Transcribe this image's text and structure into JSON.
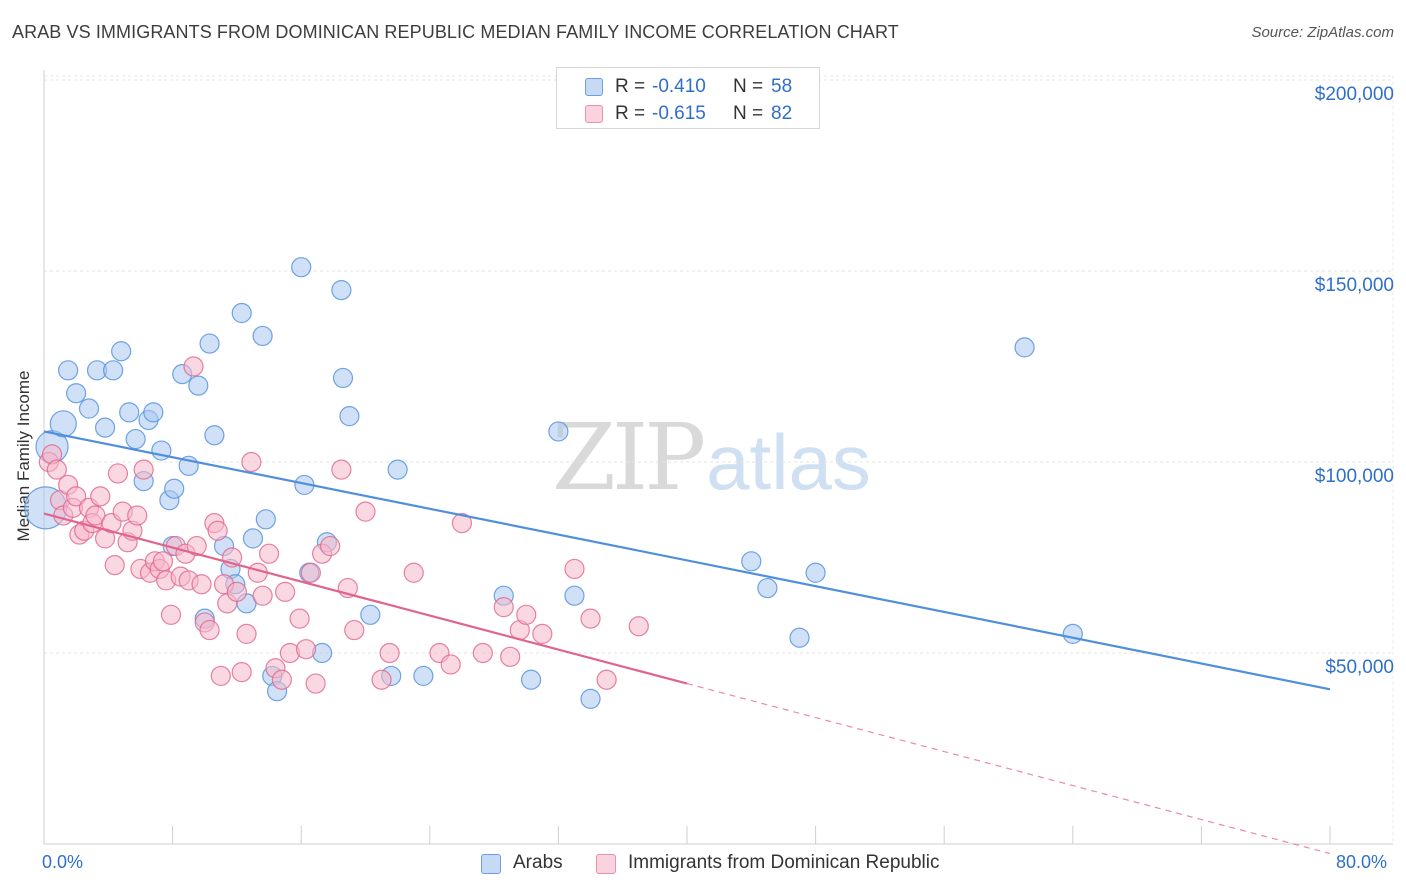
{
  "title": "ARAB VS IMMIGRANTS FROM DOMINICAN REPUBLIC MEDIAN FAMILY INCOME CORRELATION CHART",
  "source": "Source: ZipAtlas.com",
  "watermark": {
    "zip": "ZIP",
    "atlas": "atlas"
  },
  "stat_legend": {
    "rows": [
      {
        "r_label": "R = ",
        "r_value": "-0.410",
        "n_label": "N = ",
        "n_value": "58",
        "color": "#a9c8f0"
      },
      {
        "r_label": "R = ",
        "r_value": "-0.615",
        "n_label": "N = ",
        "n_value": "82",
        "color": "#f6b8cb"
      }
    ]
  },
  "legend": {
    "items": [
      {
        "label": "Arabs",
        "color": "#a9c8f0"
      },
      {
        "label": "Immigrants from Dominican Republic",
        "color": "#f6b8cb"
      }
    ]
  },
  "chart_data": {
    "type": "scatter",
    "title": "ARAB VS IMMIGRANTS FROM DOMINICAN REPUBLIC MEDIAN FAMILY INCOME CORRELATION CHART",
    "xlabel": "",
    "ylabel": "Median Family Income",
    "xlim": [
      0,
      80
    ],
    "ylim": [
      0,
      200000
    ],
    "x_tick_labels": [
      "0.0%",
      "80.0%"
    ],
    "y_ticks": [
      50000,
      100000,
      150000,
      200000
    ],
    "y_tick_labels": [
      "$50,000",
      "$100,000",
      "$150,000",
      "$200,000"
    ],
    "grid": true,
    "legend_position": "bottom",
    "series": [
      {
        "name": "Arabs",
        "color": "#4f8fdc",
        "fill": "#a9c8f0",
        "trend": {
          "x": [
            0,
            80
          ],
          "y": [
            108000,
            40500
          ]
        },
        "points": [
          [
            0.1,
            88000
          ],
          [
            0.5,
            104000
          ],
          [
            1.2,
            110000
          ],
          [
            1.5,
            124000
          ],
          [
            2.0,
            118000
          ],
          [
            2.8,
            114000
          ],
          [
            3.3,
            124000
          ],
          [
            3.8,
            109000
          ],
          [
            4.3,
            124000
          ],
          [
            4.8,
            129000
          ],
          [
            5.3,
            113000
          ],
          [
            5.7,
            106000
          ],
          [
            6.2,
            95000
          ],
          [
            6.5,
            111000
          ],
          [
            6.8,
            113000
          ],
          [
            7.3,
            103000
          ],
          [
            7.8,
            90000
          ],
          [
            8.1,
            93000
          ],
          [
            8.6,
            123000
          ],
          [
            9.0,
            99000
          ],
          [
            9.6,
            120000
          ],
          [
            10.3,
            131000
          ],
          [
            10.6,
            107000
          ],
          [
            11.2,
            78000
          ],
          [
            11.6,
            72000
          ],
          [
            11.9,
            68000
          ],
          [
            12.3,
            139000
          ],
          [
            12.6,
            63000
          ],
          [
            13.0,
            80000
          ],
          [
            13.6,
            133000
          ],
          [
            13.8,
            85000
          ],
          [
            14.2,
            44000
          ],
          [
            14.5,
            40000
          ],
          [
            16.0,
            151000
          ],
          [
            16.2,
            94000
          ],
          [
            16.5,
            71000
          ],
          [
            17.3,
            50000
          ],
          [
            17.6,
            79000
          ],
          [
            18.5,
            145000
          ],
          [
            18.6,
            122000
          ],
          [
            19.0,
            112000
          ],
          [
            20.3,
            60000
          ],
          [
            21.6,
            44000
          ],
          [
            22.0,
            98000
          ],
          [
            23.6,
            44000
          ],
          [
            28.6,
            65000
          ],
          [
            30.3,
            43000
          ],
          [
            32.0,
            108000
          ],
          [
            33.0,
            65000
          ],
          [
            34.0,
            38000
          ],
          [
            44.0,
            74000
          ],
          [
            45.0,
            67000
          ],
          [
            47.0,
            54000
          ],
          [
            48.0,
            71000
          ],
          [
            61.0,
            130000
          ],
          [
            64.0,
            55000
          ],
          [
            10.0,
            59000
          ],
          [
            8.0,
            78000
          ]
        ]
      },
      {
        "name": "Immigrants from Dominican Republic",
        "color": "#e0648c",
        "fill": "#f6b8cb",
        "trend": {
          "x": [
            0,
            40
          ],
          "y": [
            86500,
            42000
          ]
        },
        "trend_extension": {
          "x": [
            40,
            80
          ],
          "y": [
            42000,
            -2500
          ]
        },
        "points": [
          [
            0.3,
            100000
          ],
          [
            0.5,
            102000
          ],
          [
            0.8,
            98000
          ],
          [
            1.0,
            90000
          ],
          [
            1.2,
            86000
          ],
          [
            1.5,
            94000
          ],
          [
            1.8,
            88000
          ],
          [
            2.0,
            91000
          ],
          [
            2.2,
            81000
          ],
          [
            2.5,
            82000
          ],
          [
            2.8,
            88000
          ],
          [
            3.0,
            84000
          ],
          [
            3.2,
            86000
          ],
          [
            3.5,
            91000
          ],
          [
            3.8,
            80000
          ],
          [
            4.2,
            84000
          ],
          [
            4.4,
            73000
          ],
          [
            4.6,
            97000
          ],
          [
            4.9,
            87000
          ],
          [
            5.2,
            79000
          ],
          [
            5.5,
            82000
          ],
          [
            5.8,
            86000
          ],
          [
            6.0,
            72000
          ],
          [
            6.2,
            98000
          ],
          [
            6.6,
            71000
          ],
          [
            6.9,
            74000
          ],
          [
            7.2,
            72000
          ],
          [
            7.4,
            74000
          ],
          [
            7.6,
            69000
          ],
          [
            7.9,
            60000
          ],
          [
            8.2,
            78000
          ],
          [
            8.5,
            70000
          ],
          [
            8.8,
            76000
          ],
          [
            9.0,
            69000
          ],
          [
            9.3,
            125000
          ],
          [
            9.5,
            78000
          ],
          [
            9.8,
            68000
          ],
          [
            10.0,
            58000
          ],
          [
            10.3,
            56000
          ],
          [
            10.6,
            84000
          ],
          [
            10.8,
            82000
          ],
          [
            11.0,
            44000
          ],
          [
            11.2,
            68000
          ],
          [
            11.4,
            63000
          ],
          [
            11.7,
            75000
          ],
          [
            12.0,
            66000
          ],
          [
            12.3,
            45000
          ],
          [
            12.6,
            55000
          ],
          [
            12.9,
            100000
          ],
          [
            13.3,
            71000
          ],
          [
            13.6,
            65000
          ],
          [
            14.0,
            76000
          ],
          [
            14.4,
            46000
          ],
          [
            14.8,
            43000
          ],
          [
            15.0,
            66000
          ],
          [
            15.3,
            50000
          ],
          [
            15.9,
            59000
          ],
          [
            16.3,
            51000
          ],
          [
            16.6,
            71000
          ],
          [
            16.9,
            42000
          ],
          [
            17.3,
            76000
          ],
          [
            17.8,
            78000
          ],
          [
            18.5,
            98000
          ],
          [
            18.9,
            67000
          ],
          [
            19.3,
            56000
          ],
          [
            20.0,
            87000
          ],
          [
            21.0,
            43000
          ],
          [
            21.5,
            50000
          ],
          [
            23.0,
            71000
          ],
          [
            24.6,
            50000
          ],
          [
            25.3,
            47000
          ],
          [
            26.0,
            84000
          ],
          [
            27.3,
            50000
          ],
          [
            28.6,
            62000
          ],
          [
            29.0,
            49000
          ],
          [
            29.6,
            56000
          ],
          [
            30.0,
            60000
          ],
          [
            31.0,
            55000
          ],
          [
            33.0,
            72000
          ],
          [
            34.0,
            59000
          ],
          [
            35.0,
            43000
          ],
          [
            37.0,
            57000
          ]
        ]
      }
    ]
  }
}
